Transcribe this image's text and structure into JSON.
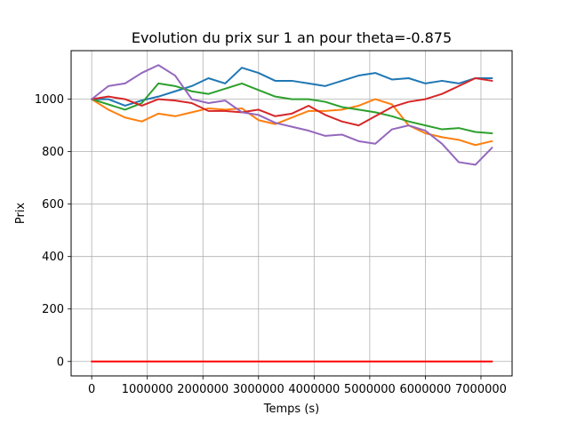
{
  "chart_data": {
    "type": "line",
    "title": "Evolution du prix sur 1 an pour theta=-0.875",
    "xlabel": "Temps (s)",
    "ylabel": "Prix",
    "xlim": [
      -370000,
      7560000
    ],
    "ylim": [
      -55,
      1185
    ],
    "xticks": [
      0,
      1000000,
      2000000,
      3000000,
      4000000,
      5000000,
      6000000,
      7000000
    ],
    "xtick_labels": [
      "0",
      "1000000",
      "2000000",
      "3000000",
      "4000000",
      "5000000",
      "6000000",
      "7000000"
    ],
    "yticks": [
      0,
      200,
      400,
      600,
      800,
      1000
    ],
    "ytick_labels": [
      "0",
      "200",
      "400",
      "600",
      "800",
      "1000"
    ],
    "grid": true,
    "series": [
      {
        "color": "#1f77b4",
        "x": [
          0,
          300000,
          600000,
          900000,
          1200000,
          1500000,
          1800000,
          2100000,
          2400000,
          2700000,
          3000000,
          3300000,
          3600000,
          3900000,
          4200000,
          4500000,
          4800000,
          5100000,
          5400000,
          5700000,
          6000000,
          6300000,
          6600000,
          6900000,
          7200000
        ],
        "y": [
          1000,
          1000,
          975,
          995,
          1010,
          1030,
          1050,
          1080,
          1060,
          1120,
          1100,
          1070,
          1070,
          1060,
          1050,
          1070,
          1090,
          1100,
          1075,
          1080,
          1060,
          1070,
          1060,
          1080,
          1080
        ]
      },
      {
        "color": "#ff7f0e",
        "x": [
          0,
          300000,
          600000,
          900000,
          1200000,
          1500000,
          1800000,
          2100000,
          2400000,
          2700000,
          3000000,
          3300000,
          3600000,
          3900000,
          4200000,
          4500000,
          4800000,
          5100000,
          5400000,
          5700000,
          6000000,
          6300000,
          6600000,
          6900000,
          7200000
        ],
        "y": [
          1000,
          960,
          930,
          915,
          945,
          935,
          950,
          965,
          960,
          965,
          920,
          905,
          930,
          955,
          955,
          960,
          975,
          1000,
          980,
          900,
          870,
          855,
          845,
          825,
          840
        ]
      },
      {
        "color": "#2ca02c",
        "x": [
          0,
          300000,
          600000,
          900000,
          1200000,
          1500000,
          1800000,
          2100000,
          2400000,
          2700000,
          3000000,
          3300000,
          3600000,
          3900000,
          4200000,
          4500000,
          4800000,
          5100000,
          5400000,
          5700000,
          6000000,
          6300000,
          6600000,
          6900000,
          7200000
        ],
        "y": [
          1000,
          980,
          960,
          985,
          1060,
          1050,
          1030,
          1020,
          1040,
          1060,
          1035,
          1010,
          1000,
          1000,
          990,
          970,
          960,
          950,
          935,
          915,
          900,
          885,
          890,
          875,
          870
        ]
      },
      {
        "color": "#d62728",
        "x": [
          0,
          300000,
          600000,
          900000,
          1200000,
          1500000,
          1800000,
          2100000,
          2400000,
          2700000,
          3000000,
          3300000,
          3600000,
          3900000,
          4200000,
          4500000,
          4800000,
          5100000,
          5400000,
          5700000,
          6000000,
          6300000,
          6600000,
          6900000,
          7200000
        ],
        "y": [
          1000,
          1010,
          1000,
          975,
          1000,
          995,
          985,
          955,
          955,
          950,
          960,
          935,
          945,
          975,
          940,
          915,
          900,
          935,
          970,
          990,
          1000,
          1020,
          1050,
          1080,
          1070
        ]
      },
      {
        "color": "#9467bd",
        "x": [
          0,
          300000,
          600000,
          900000,
          1200000,
          1500000,
          1800000,
          2100000,
          2400000,
          2700000,
          3000000,
          3300000,
          3600000,
          3900000,
          4200000,
          4500000,
          4800000,
          5100000,
          5400000,
          5700000,
          6000000,
          6300000,
          6600000,
          6900000,
          7200000
        ],
        "y": [
          1000,
          1050,
          1060,
          1100,
          1130,
          1090,
          1000,
          985,
          995,
          950,
          940,
          910,
          895,
          880,
          860,
          865,
          840,
          830,
          885,
          900,
          880,
          830,
          760,
          750,
          815
        ]
      },
      {
        "color": "#ff0000",
        "x": [
          0,
          7200000
        ],
        "y": [
          0,
          0
        ]
      }
    ]
  }
}
